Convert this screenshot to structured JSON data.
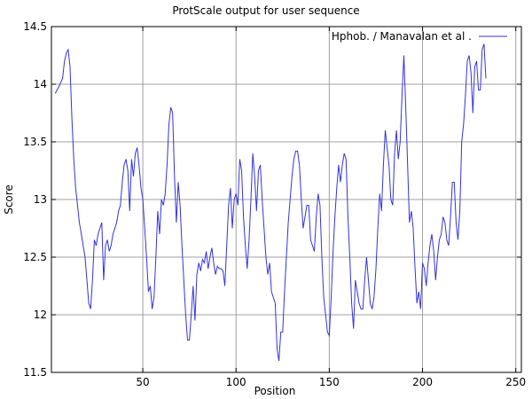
{
  "chart_data": {
    "type": "line",
    "title": "ProtScale output for user sequence",
    "xlabel": "Position",
    "ylabel": "Score",
    "xlim": [
      1,
      253
    ],
    "ylim": [
      11.5,
      14.5
    ],
    "xticks": [
      50,
      100,
      150,
      200,
      250
    ],
    "yticks": [
      11.5,
      12,
      12.5,
      13,
      13.5,
      14,
      14.5
    ],
    "grid": true,
    "legend_position": "top-right",
    "line_color": "#3333dd",
    "series": [
      {
        "name": "Hphob.  /  Manavalan et al .",
        "points": [
          [
            3,
            13.92
          ],
          [
            5,
            13.98
          ],
          [
            7,
            14.05
          ],
          [
            8,
            14.2
          ],
          [
            9,
            14.27
          ],
          [
            10,
            14.3
          ],
          [
            11,
            14.15
          ],
          [
            12,
            13.7
          ],
          [
            13,
            13.35
          ],
          [
            14,
            13.1
          ],
          [
            15,
            12.95
          ],
          [
            16,
            12.8
          ],
          [
            17,
            12.7
          ],
          [
            18,
            12.6
          ],
          [
            19,
            12.5
          ],
          [
            20,
            12.3
          ],
          [
            21,
            12.1
          ],
          [
            22,
            12.05
          ],
          [
            23,
            12.3
          ],
          [
            24,
            12.65
          ],
          [
            25,
            12.6
          ],
          [
            26,
            12.7
          ],
          [
            27,
            12.75
          ],
          [
            28,
            12.8
          ],
          [
            29,
            12.3
          ],
          [
            30,
            12.6
          ],
          [
            31,
            12.65
          ],
          [
            32,
            12.55
          ],
          [
            33,
            12.6
          ],
          [
            34,
            12.7
          ],
          [
            35,
            12.75
          ],
          [
            36,
            12.8
          ],
          [
            37,
            12.9
          ],
          [
            38,
            12.95
          ],
          [
            39,
            13.15
          ],
          [
            40,
            13.3
          ],
          [
            41,
            13.35
          ],
          [
            42,
            13.25
          ],
          [
            43,
            12.9
          ],
          [
            44,
            13.35
          ],
          [
            45,
            13.2
          ],
          [
            46,
            13.4
          ],
          [
            47,
            13.45
          ],
          [
            48,
            13.3
          ],
          [
            49,
            13.1
          ],
          [
            50,
            13.0
          ],
          [
            51,
            12.75
          ],
          [
            52,
            12.5
          ],
          [
            53,
            12.2
          ],
          [
            54,
            12.25
          ],
          [
            55,
            12.05
          ],
          [
            56,
            12.15
          ],
          [
            57,
            12.5
          ],
          [
            58,
            12.9
          ],
          [
            59,
            12.7
          ],
          [
            60,
            13.0
          ],
          [
            61,
            12.95
          ],
          [
            62,
            13.05
          ],
          [
            63,
            13.3
          ],
          [
            64,
            13.65
          ],
          [
            65,
            13.8
          ],
          [
            66,
            13.75
          ],
          [
            67,
            13.2
          ],
          [
            68,
            12.8
          ],
          [
            69,
            13.15
          ],
          [
            70,
            12.95
          ],
          [
            71,
            12.6
          ],
          [
            72,
            12.3
          ],
          [
            73,
            12.0
          ],
          [
            74,
            11.78
          ],
          [
            75,
            11.78
          ],
          [
            76,
            12.0
          ],
          [
            77,
            12.25
          ],
          [
            78,
            11.95
          ],
          [
            79,
            12.35
          ],
          [
            80,
            12.45
          ],
          [
            81,
            12.38
          ],
          [
            82,
            12.48
          ],
          [
            83,
            12.45
          ],
          [
            84,
            12.55
          ],
          [
            85,
            12.4
          ],
          [
            86,
            12.5
          ],
          [
            87,
            12.58
          ],
          [
            88,
            12.45
          ],
          [
            89,
            12.35
          ],
          [
            90,
            12.42
          ],
          [
            91,
            12.4
          ],
          [
            92,
            12.4
          ],
          [
            93,
            12.38
          ],
          [
            94,
            12.25
          ],
          [
            95,
            12.6
          ],
          [
            96,
            12.95
          ],
          [
            97,
            13.1
          ],
          [
            98,
            12.75
          ],
          [
            99,
            13.0
          ],
          [
            100,
            13.05
          ],
          [
            101,
            12.95
          ],
          [
            102,
            13.35
          ],
          [
            103,
            13.25
          ],
          [
            104,
            12.85
          ],
          [
            105,
            12.6
          ],
          [
            106,
            12.4
          ],
          [
            107,
            12.65
          ],
          [
            108,
            13.0
          ],
          [
            109,
            13.4
          ],
          [
            110,
            13.2
          ],
          [
            111,
            12.9
          ],
          [
            112,
            13.25
          ],
          [
            113,
            13.3
          ],
          [
            114,
            13.0
          ],
          [
            115,
            12.75
          ],
          [
            116,
            12.5
          ],
          [
            117,
            12.35
          ],
          [
            118,
            12.45
          ],
          [
            119,
            12.2
          ],
          [
            120,
            12.15
          ],
          [
            121,
            12.1
          ],
          [
            122,
            11.7
          ],
          [
            123,
            11.6
          ],
          [
            124,
            11.85
          ],
          [
            125,
            11.85
          ],
          [
            126,
            12.2
          ],
          [
            127,
            12.5
          ],
          [
            128,
            12.8
          ],
          [
            129,
            13.0
          ],
          [
            130,
            13.2
          ],
          [
            131,
            13.35
          ],
          [
            132,
            13.42
          ],
          [
            133,
            13.42
          ],
          [
            134,
            13.3
          ],
          [
            135,
            13.0
          ],
          [
            136,
            12.75
          ],
          [
            137,
            12.85
          ],
          [
            138,
            12.95
          ],
          [
            139,
            12.95
          ],
          [
            140,
            12.65
          ],
          [
            141,
            12.6
          ],
          [
            142,
            12.55
          ],
          [
            143,
            12.85
          ],
          [
            144,
            13.05
          ],
          [
            145,
            12.95
          ],
          [
            146,
            12.5
          ],
          [
            147,
            12.15
          ],
          [
            148,
            12.0
          ],
          [
            149,
            11.85
          ],
          [
            150,
            11.82
          ],
          [
            151,
            12.15
          ],
          [
            152,
            12.55
          ],
          [
            153,
            12.85
          ],
          [
            154,
            13.1
          ],
          [
            155,
            13.3
          ],
          [
            156,
            13.15
          ],
          [
            157,
            13.3
          ],
          [
            158,
            13.4
          ],
          [
            159,
            13.35
          ],
          [
            160,
            12.85
          ],
          [
            161,
            12.5
          ],
          [
            162,
            12.1
          ],
          [
            163,
            11.88
          ],
          [
            164,
            12.3
          ],
          [
            165,
            12.2
          ],
          [
            166,
            12.1
          ],
          [
            167,
            12.05
          ],
          [
            168,
            12.05
          ],
          [
            169,
            12.3
          ],
          [
            170,
            12.5
          ],
          [
            171,
            12.3
          ],
          [
            172,
            12.1
          ],
          [
            173,
            12.05
          ],
          [
            174,
            12.15
          ],
          [
            175,
            12.4
          ],
          [
            176,
            12.75
          ],
          [
            177,
            13.05
          ],
          [
            178,
            12.9
          ],
          [
            179,
            13.3
          ],
          [
            180,
            13.6
          ],
          [
            181,
            13.45
          ],
          [
            182,
            13.3
          ],
          [
            183,
            13.0
          ],
          [
            184,
            12.95
          ],
          [
            185,
            13.4
          ],
          [
            186,
            13.6
          ],
          [
            187,
            13.35
          ],
          [
            188,
            13.5
          ],
          [
            189,
            13.9
          ],
          [
            190,
            14.25
          ],
          [
            191,
            13.8
          ],
          [
            192,
            13.3
          ],
          [
            193,
            12.8
          ],
          [
            194,
            12.9
          ],
          [
            195,
            12.75
          ],
          [
            196,
            12.4
          ],
          [
            197,
            12.1
          ],
          [
            198,
            12.2
          ],
          [
            199,
            12.05
          ],
          [
            200,
            12.45
          ],
          [
            201,
            12.4
          ],
          [
            202,
            12.25
          ],
          [
            203,
            12.45
          ],
          [
            204,
            12.6
          ],
          [
            205,
            12.7
          ],
          [
            206,
            12.55
          ],
          [
            207,
            12.3
          ],
          [
            208,
            12.5
          ],
          [
            209,
            12.65
          ],
          [
            210,
            12.7
          ],
          [
            211,
            12.85
          ],
          [
            212,
            12.8
          ],
          [
            213,
            12.65
          ],
          [
            214,
            12.6
          ],
          [
            215,
            12.85
          ],
          [
            216,
            13.15
          ],
          [
            217,
            13.15
          ],
          [
            218,
            12.8
          ],
          [
            219,
            12.65
          ],
          [
            220,
            12.9
          ],
          [
            221,
            13.5
          ],
          [
            222,
            13.65
          ],
          [
            223,
            13.9
          ],
          [
            224,
            14.2
          ],
          [
            225,
            14.25
          ],
          [
            226,
            14.1
          ],
          [
            227,
            13.75
          ],
          [
            228,
            14.15
          ],
          [
            229,
            14.2
          ],
          [
            230,
            13.95
          ],
          [
            231,
            13.95
          ],
          [
            232,
            14.3
          ],
          [
            233,
            14.35
          ],
          [
            234,
            14.05
          ]
        ]
      }
    ]
  }
}
